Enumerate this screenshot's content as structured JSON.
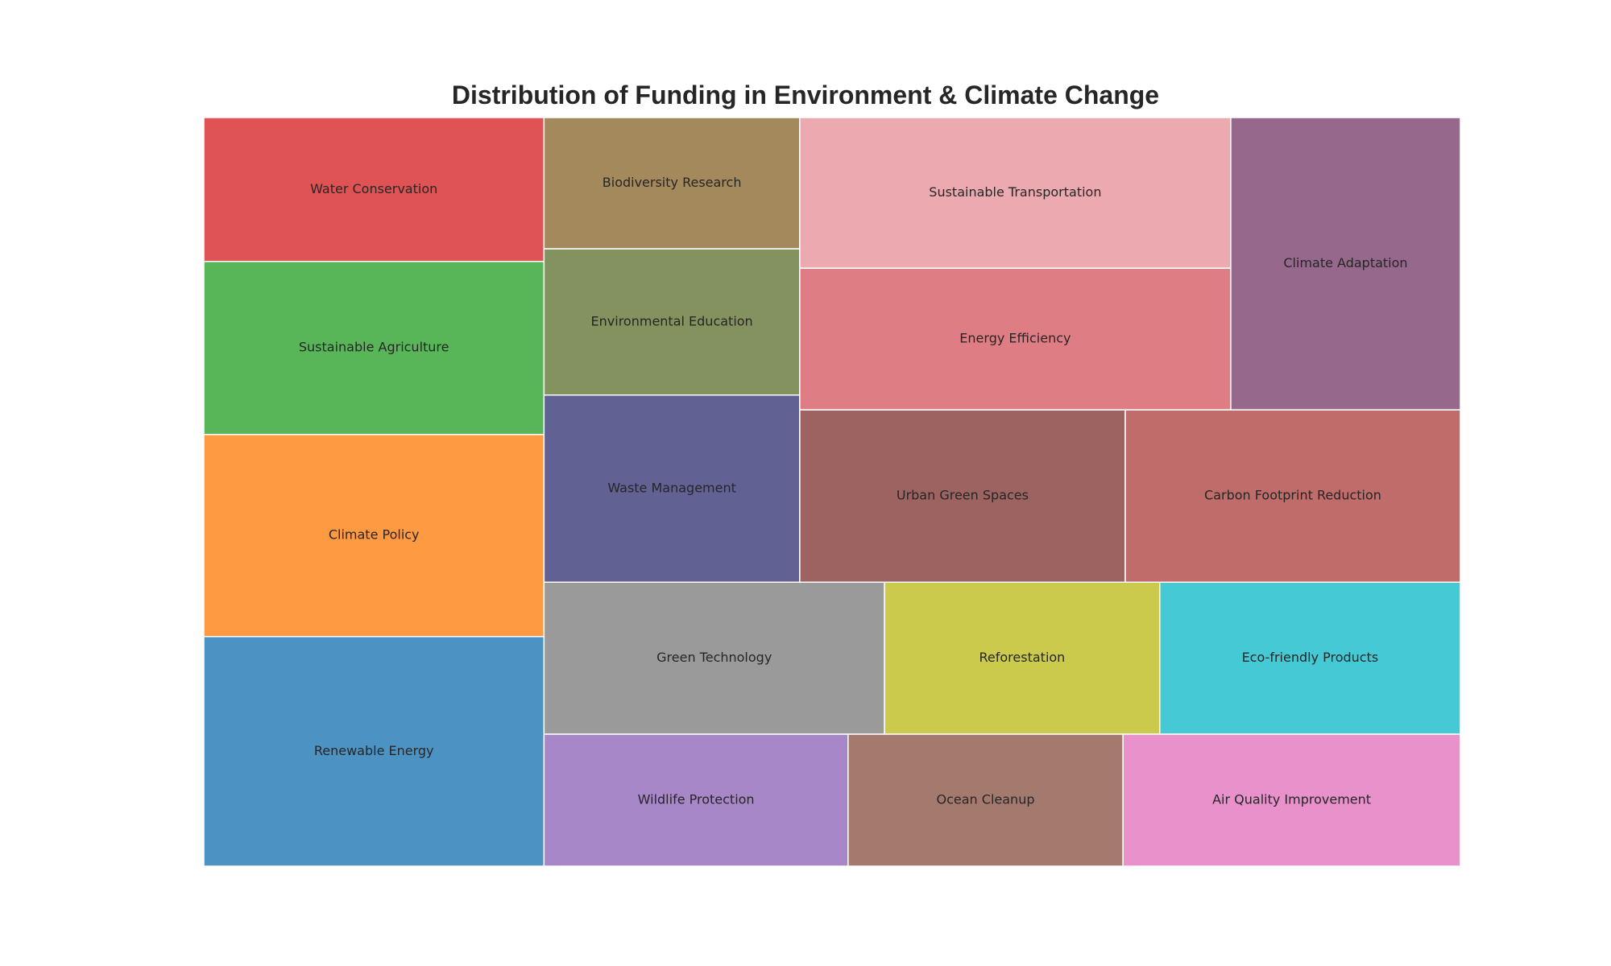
{
  "chart_data": {
    "type": "treemap",
    "title": "Distribution of Funding in Environment & Climate Change",
    "items": [
      {
        "label": "Renewable Energy",
        "value": 14.2,
        "color": "#4c93c4"
      },
      {
        "label": "Climate Policy",
        "value": 12.5,
        "color": "#fe9a41"
      },
      {
        "label": "Sustainable Agriculture",
        "value": 10.7,
        "color": "#58b659"
      },
      {
        "label": "Water Conservation",
        "value": 8.9,
        "color": "#df5355"
      },
      {
        "label": "Wildlife Protection",
        "value": 7.3,
        "color": "#a887c9"
      },
      {
        "label": "Ocean Cleanup",
        "value": 6.6,
        "color": "#a57a6e"
      },
      {
        "label": "Air Quality Improvement",
        "value": 8.1,
        "color": "#e891cb"
      },
      {
        "label": "Green Technology",
        "value": 9.4,
        "color": "#9a9a9a"
      },
      {
        "label": "Reforestation",
        "value": 7.6,
        "color": "#cbca4d"
      },
      {
        "label": "Eco-friendly Products",
        "value": 8.3,
        "color": "#44c9d5"
      },
      {
        "label": "Waste Management",
        "value": 8.7,
        "color": "#616193"
      },
      {
        "label": "Environmental Education",
        "value": 6.8,
        "color": "#849260"
      },
      {
        "label": "Biodiversity Research",
        "value": 6.1,
        "color": "#a3895c"
      },
      {
        "label": "Urban Green Spaces",
        "value": 10.2,
        "color": "#9c6361"
      },
      {
        "label": "Carbon Footprint Reduction",
        "value": 10.5,
        "color": "#bf6c6b"
      },
      {
        "label": "Sustainable Transportation",
        "value": 11.8,
        "color": "#ecaab0"
      },
      {
        "label": "Energy Efficiency",
        "value": 11.1,
        "color": "#de7d84"
      },
      {
        "label": "Climate Adaptation",
        "value": 12.2,
        "color": "#95688c"
      }
    ]
  }
}
